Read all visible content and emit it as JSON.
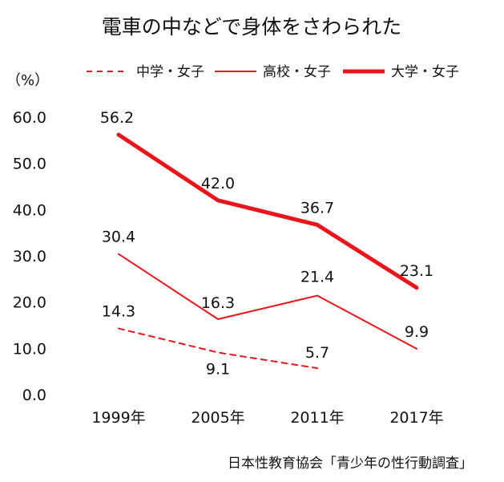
{
  "chart_data": {
    "type": "line",
    "title": "電車の中などで身体をさわられた",
    "ylabel": "（%）",
    "categories": [
      "1999年",
      "2005年",
      "2011年",
      "2017年"
    ],
    "ylim": [
      0,
      60
    ],
    "yticks": [
      "0.0",
      "10.0",
      "20.0",
      "30.0",
      "40.0",
      "50.0",
      "60.0"
    ],
    "grid": false,
    "legend_position": "top",
    "series": [
      {
        "name": "中学・女子",
        "values": [
          14.3,
          9.1,
          5.7,
          null
        ],
        "labels": [
          "14.3",
          "9.1",
          "5.7",
          ""
        ],
        "style": "dashed",
        "color": "#e8161b"
      },
      {
        "name": "高校・女子",
        "values": [
          30.4,
          16.3,
          21.4,
          9.9
        ],
        "labels": [
          "30.4",
          "16.3",
          "21.4",
          "9.9"
        ],
        "style": "thin",
        "color": "#e8161b"
      },
      {
        "name": "大学・女子",
        "values": [
          56.2,
          42.0,
          36.7,
          23.1
        ],
        "labels": [
          "56.2",
          "42.0",
          "36.7",
          "23.1"
        ],
        "style": "thick",
        "color": "#e8161b"
      }
    ],
    "source": "日本性教育協会「青少年の性行動調査」"
  }
}
